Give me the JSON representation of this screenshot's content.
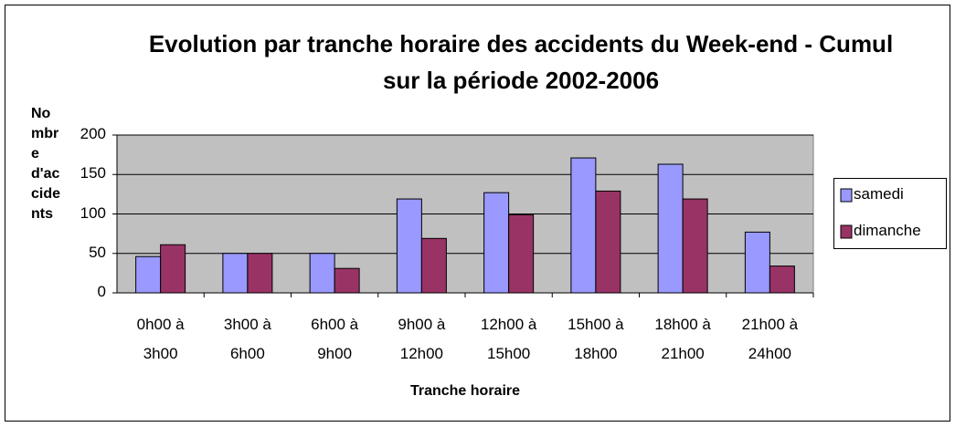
{
  "chart_data": {
    "type": "bar",
    "title": "Evolution par tranche horaire des accidents du Week-end - Cumul sur la période 2002-2006",
    "xlabel": "Tranche horaire",
    "ylabel": "Nombre d'accidents",
    "categories": [
      "0h00 à 3h00",
      "3h00 à 6h00",
      "6h00 à 9h00",
      "9h00 à 12h00",
      "12h00 à 15h00",
      "15h00 à 18h00",
      "18h00 à 21h00",
      "21h00 à 24h00"
    ],
    "series": [
      {
        "name": "samedi",
        "color": "#9999ff",
        "values": [
          46,
          50,
          50,
          119,
          127,
          171,
          163,
          77
        ]
      },
      {
        "name": "dimanche",
        "color": "#993366",
        "values": [
          61,
          50,
          31,
          69,
          99,
          129,
          119,
          34
        ]
      }
    ],
    "ylim": [
      0,
      200
    ],
    "yticks": [
      0,
      50,
      100,
      150,
      200
    ],
    "grid": true,
    "legend": "right"
  }
}
